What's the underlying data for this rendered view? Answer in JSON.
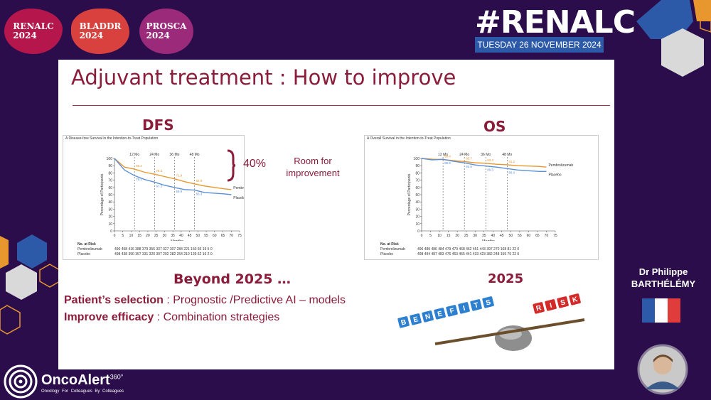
{
  "header": {
    "badges": [
      {
        "line1": "RENALC",
        "line2": "2024",
        "color": "#b5174c"
      },
      {
        "line1": "BLADDR",
        "line2": "2024",
        "color": "#d9413f"
      },
      {
        "line1": "PROSCA",
        "line2": "2024",
        "color": "#9b2a7a"
      }
    ],
    "hashtag": "#RENALC",
    "date": "TUESDAY 26 NOVEMBER 2024"
  },
  "slide": {
    "title": "Adjuvant treatment : How to improve",
    "dfs_label": "DFS",
    "os_label": "OS",
    "bracket_value": "40%",
    "room_note_line1": "Room for",
    "room_note_line2": "improvement",
    "beyond_heading": "Beyond 2025 …",
    "line1_bold": "Patient’s selection",
    "line1_rest": " : Prognostic /Predictive AI – models",
    "line2_bold": "Improve efficacy",
    "line2_rest": " : Combination strategies",
    "year_label": "2025",
    "benefits_word": "BENEFITS",
    "risk_word": "RISK"
  },
  "speaker": {
    "line1": "Dr Philippe",
    "line2": "BARTHÉLÉMY"
  },
  "footer": {
    "logo_name": "OncoAlert",
    "logo_sup": "360°",
    "tagline": "Oncology   For Colleagues   By Colleagues"
  },
  "chart_data": [
    {
      "type": "line",
      "title": "A  Disease-free Survival in the Intention-to-Treat Population",
      "xlabel": "Months",
      "ylabel": "Percentage of Participants",
      "xlim": [
        0,
        75
      ],
      "ylim": [
        0,
        100
      ],
      "x_ticks": [
        0,
        5,
        10,
        15,
        20,
        25,
        30,
        35,
        40,
        45,
        50,
        55,
        60,
        65,
        70,
        75
      ],
      "y_ticks": [
        0,
        10,
        20,
        30,
        40,
        50,
        60,
        70,
        80,
        90,
        100
      ],
      "milestones": [
        "12 Mo",
        "24 Mo",
        "36 Mo",
        "48 Mo"
      ],
      "series": [
        {
          "name": "Pembrolizumab",
          "color": "#e8962e",
          "x": [
            0,
            6,
            12,
            18,
            24,
            30,
            36,
            42,
            48,
            54,
            60,
            66,
            70
          ],
          "y": [
            100,
            88,
            85.2,
            81,
            78.3,
            75,
            71.9,
            68,
            64.9,
            62,
            60,
            58,
            57
          ]
        },
        {
          "name": "Placebo",
          "color": "#5b8fd6",
          "x": [
            0,
            6,
            12,
            18,
            24,
            30,
            36,
            42,
            48,
            54,
            60,
            66,
            70
          ],
          "y": [
            100,
            84,
            76.3,
            71,
            67.3,
            63,
            59.9,
            57,
            56.3,
            53,
            52,
            51,
            50
          ]
        }
      ],
      "data_labels": [
        "85.2",
        "76.3",
        "78.3",
        "67.3",
        "71.9",
        "59.9",
        "64.9",
        "56.3"
      ],
      "risk_header": "No. at Risk",
      "risk_rows": [
        {
          "name": "Pembrolizumab",
          "values": "496  458  416  388  379  355  337  327  307  284  221  160   65   19    5    0"
        },
        {
          "name": "Placebo",
          "values": "498  438  390  357  331  320  307  292  282  254  210  139   62   16    2    0"
        }
      ]
    },
    {
      "type": "line",
      "title": "A  Overall Survival in the Intention-to-Treat Population",
      "xlabel": "Months",
      "ylabel": "Percentage of Participants",
      "xlim": [
        0,
        75
      ],
      "ylim": [
        0,
        100
      ],
      "x_ticks": [
        0,
        5,
        10,
        15,
        20,
        25,
        30,
        35,
        40,
        45,
        50,
        55,
        60,
        65,
        70,
        75
      ],
      "y_ticks": [
        0,
        10,
        20,
        30,
        40,
        50,
        60,
        70,
        80,
        90,
        100
      ],
      "milestones": [
        "12 Mo",
        "24 Mo",
        "36 Mo",
        "48 Mo"
      ],
      "series": [
        {
          "name": "Pembrolizumab",
          "color": "#e8962e",
          "x": [
            0,
            6,
            12,
            18,
            24,
            30,
            36,
            42,
            48,
            54,
            60,
            66,
            70
          ],
          "y": [
            100,
            99,
            98.4,
            97,
            95.7,
            94,
            93.3,
            92,
            91.2,
            90,
            89.5,
            89,
            88
          ]
        },
        {
          "name": "Placebo",
          "color": "#5b8fd6",
          "x": [
            0,
            6,
            12,
            18,
            24,
            30,
            36,
            42,
            48,
            54,
            60,
            66,
            70
          ],
          "y": [
            100,
            98,
            98.8,
            96,
            93.9,
            91,
            89.5,
            88,
            86.0,
            84,
            83,
            82,
            82
          ]
        }
      ],
      "data_labels": [
        "98.4",
        "98.8",
        "95.7",
        "93.9",
        "93.3",
        "89.5",
        "91.2",
        "86.0"
      ],
      "risk_header": "No. at Risk",
      "risk_rows": [
        {
          "name": "Pembrolizumab",
          "values": "496  489  486  484  479  470  468  462  451  443  397  270  168   81   22    0"
        },
        {
          "name": "Placebo",
          "values": "498  494  487  483  476  463  455  441  433  423  382  248  155   79   22    0"
        }
      ]
    }
  ]
}
